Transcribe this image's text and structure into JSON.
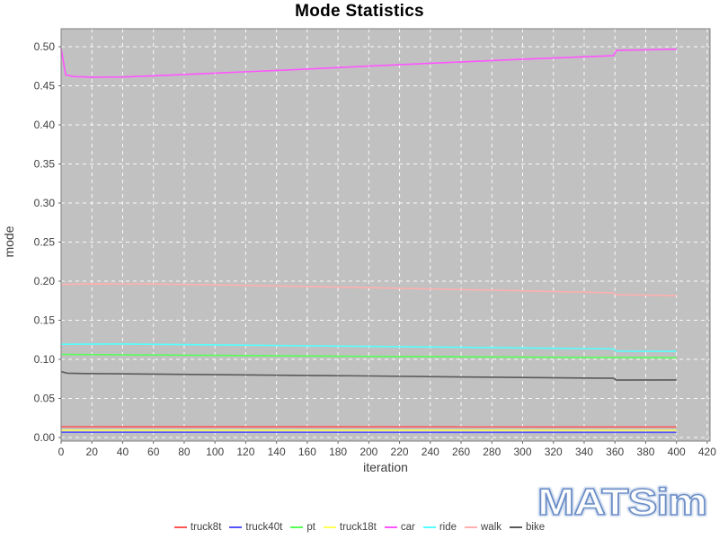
{
  "title": "Mode Statistics",
  "axes": {
    "x": {
      "label": "iteration",
      "ticks": [
        0,
        20,
        40,
        60,
        80,
        100,
        120,
        140,
        160,
        180,
        200,
        220,
        240,
        260,
        280,
        300,
        320,
        340,
        360,
        380,
        400,
        420
      ]
    },
    "y": {
      "label": "mode",
      "ticks": [
        0.0,
        0.05,
        0.1,
        0.15,
        0.2,
        0.25,
        0.3,
        0.35,
        0.4,
        0.45,
        0.5
      ]
    }
  },
  "watermark": {
    "text": "MATSim",
    "stroke_color": "#6d8fc7",
    "glow_color": "#c2d1ea",
    "fill_color": "#fdfdfe"
  },
  "plot_style": {
    "background": "#c1c1c1",
    "gridline_color": "#ffffff",
    "border_color": "#7f7f7f",
    "tick_color": "#666666",
    "tick_label_color": "#404040"
  },
  "chart_data": {
    "type": "line",
    "title": "Mode Statistics",
    "xlabel": "iteration",
    "ylabel": "mode",
    "xlim": [
      0,
      421
    ],
    "ylim": [
      0,
      0.523
    ],
    "grid": true,
    "legend_position": "bottom",
    "x_ticks_step": 20,
    "y_ticks_step": 0.05,
    "note": "mode share per iteration; car jumps and ride/walk/bike step down at iteration 360; all series end at iteration 400",
    "series": [
      {
        "name": "truck8t",
        "color": "#ff5555",
        "points": [
          [
            0,
            0.0138
          ],
          [
            400,
            0.0136
          ]
        ]
      },
      {
        "name": "truck40t",
        "color": "#5555ff",
        "points": [
          [
            0,
            0.0067
          ],
          [
            400,
            0.0066
          ]
        ]
      },
      {
        "name": "pt",
        "color": "#55ff55",
        "points": [
          [
            0,
            0.1063
          ],
          [
            100,
            0.105
          ],
          [
            200,
            0.1038
          ],
          [
            300,
            0.1028
          ],
          [
            400,
            0.102
          ]
        ]
      },
      {
        "name": "truck18t",
        "color": "#ffff55",
        "points": [
          [
            0,
            0.0093
          ],
          [
            400,
            0.0092
          ]
        ]
      },
      {
        "name": "car",
        "color": "#ff55ff",
        "points": [
          [
            0,
            0.4975
          ],
          [
            3,
            0.464
          ],
          [
            8,
            0.4618
          ],
          [
            20,
            0.461
          ],
          [
            40,
            0.4613
          ],
          [
            60,
            0.4628
          ],
          [
            100,
            0.4662
          ],
          [
            150,
            0.4705
          ],
          [
            200,
            0.4752
          ],
          [
            250,
            0.4797
          ],
          [
            300,
            0.484
          ],
          [
            330,
            0.4863
          ],
          [
            359,
            0.4886
          ],
          [
            361,
            0.4953
          ],
          [
            380,
            0.496
          ],
          [
            400,
            0.4968
          ]
        ]
      },
      {
        "name": "ride",
        "color": "#55ffff",
        "points": [
          [
            0,
            0.1193
          ],
          [
            40,
            0.1197
          ],
          [
            100,
            0.1185
          ],
          [
            200,
            0.1165
          ],
          [
            300,
            0.1146
          ],
          [
            359,
            0.1133
          ],
          [
            361,
            0.1104
          ],
          [
            400,
            0.1102
          ]
        ]
      },
      {
        "name": "walk",
        "color": "#ffafaf",
        "points": [
          [
            0,
            0.1958
          ],
          [
            20,
            0.1967
          ],
          [
            60,
            0.1963
          ],
          [
            100,
            0.1953
          ],
          [
            150,
            0.1936
          ],
          [
            200,
            0.1917
          ],
          [
            250,
            0.1897
          ],
          [
            300,
            0.1877
          ],
          [
            340,
            0.186
          ],
          [
            359,
            0.1849
          ],
          [
            361,
            0.1826
          ],
          [
            400,
            0.1815
          ]
        ]
      },
      {
        "name": "bike",
        "color": "#5a5a5a",
        "points": [
          [
            0,
            0.0843
          ],
          [
            4,
            0.0823
          ],
          [
            15,
            0.0818
          ],
          [
            60,
            0.0812
          ],
          [
            100,
            0.0804
          ],
          [
            150,
            0.0795
          ],
          [
            200,
            0.0787
          ],
          [
            250,
            0.0777
          ],
          [
            300,
            0.0768
          ],
          [
            359,
            0.0757
          ],
          [
            361,
            0.0734
          ],
          [
            400,
            0.0737
          ]
        ]
      }
    ]
  }
}
